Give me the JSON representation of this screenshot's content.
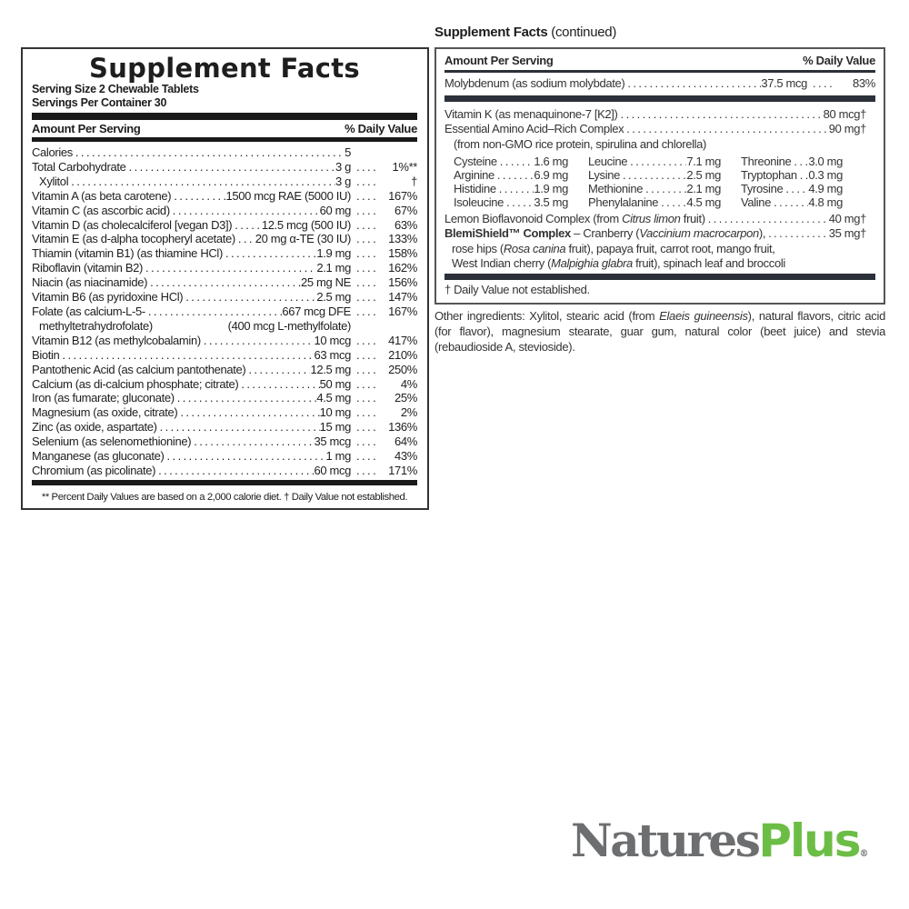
{
  "left": {
    "title": "Supplement Facts",
    "serving_size": "Serving Size 2 Chewable Tablets",
    "servings_per_container": "Servings Per Container 30",
    "header_amount": "Amount Per Serving",
    "header_dv": "% Daily Value",
    "rows": [
      {
        "label": "Calories",
        "amount": "5",
        "dv": ""
      },
      {
        "label": "Total Carbohydrate",
        "amount": "3 g",
        "dv": "1%**"
      },
      {
        "label": "Xylitol",
        "amount": "3 g",
        "dv": "†"
      },
      {
        "label": "Vitamin A (as beta carotene)",
        "amount": "1500 mcg RAE (5000 IU)",
        "dv": "167%"
      },
      {
        "label": "Vitamin C (as ascorbic acid)",
        "amount": "60 mg",
        "dv": "67%"
      },
      {
        "label": "Vitamin D (as cholecalciferol [vegan D3])",
        "amount": "12.5 mcg (500 IU)",
        "dv": "63%"
      },
      {
        "label": "Vitamin E (as d-alpha tocopheryl acetate)",
        "amount": "20 mg α-TE (30 IU)",
        "dv": "133%"
      },
      {
        "label": "Thiamin (vitamin B1) (as thiamine HCl)",
        "amount": "1.9 mg",
        "dv": "158%"
      },
      {
        "label": "Riboflavin (vitamin B2)",
        "amount": "2.1 mg",
        "dv": "162%"
      },
      {
        "label": "Niacin (as niacinamide)",
        "amount": "25 mg NE",
        "dv": "156%"
      },
      {
        "label": "Vitamin B6 (as pyridoxine HCl)",
        "amount": "2.5 mg",
        "dv": "147%"
      },
      {
        "label": "Folate (as calcium-L-5-",
        "amount": "667 mcg DFE",
        "dv": "167%",
        "label2": "methyltetrahydrofolate)",
        "amount2": "(400 mcg L-methylfolate)"
      },
      {
        "label": "Vitamin B12 (as methylcobalamin)",
        "amount": "10 mcg",
        "dv": "417%"
      },
      {
        "label": "Biotin",
        "amount": "63 mcg",
        "dv": "210%"
      },
      {
        "label": "Pantothenic Acid (as calcium pantothenate)",
        "amount": "12.5 mg",
        "dv": "250%"
      },
      {
        "label": "Calcium (as di-calcium phosphate; citrate)",
        "amount": "50 mg",
        "dv": "4%"
      },
      {
        "label": "Iron (as fumarate; gluconate)",
        "amount": "4.5 mg",
        "dv": "25%"
      },
      {
        "label": "Magnesium (as oxide, citrate)",
        "amount": "10 mg",
        "dv": "2%"
      },
      {
        "label": "Zinc (as oxide, aspartate)",
        "amount": "15 mg",
        "dv": "136%"
      },
      {
        "label": "Selenium (as selenomethionine)",
        "amount": "35 mcg",
        "dv": "64%"
      },
      {
        "label": "Manganese (as gluconate)",
        "amount": "1 mg",
        "dv": "43%"
      },
      {
        "label": "Chromium (as picolinate)",
        "amount": "60 mcg",
        "dv": "171%"
      }
    ],
    "footnote": "** Percent Daily Values are based on a 2,000 calorie diet.  † Daily Value not established."
  },
  "right": {
    "title_bold": "Supplement Facts",
    "title_rest": "(continued)",
    "header_amount": "Amount Per Serving",
    "header_dv": "% Daily Value",
    "molybdenum": {
      "label": "Molybdenum (as sodium molybdate)",
      "amount": "37.5 mcg",
      "dv": "83%"
    },
    "vitamin_k": {
      "label": "Vitamin K (as menaquinone-7 [K2])",
      "amount": "80 mcg†"
    },
    "amino_complex": {
      "label": "Essential Amino Acid–Rich Complex",
      "amount": "90 mg†",
      "source": "(from non-GMO rice protein, spirulina and chlorella)"
    },
    "amino_acids": [
      {
        "name": "Cysteine",
        "amount": "1.6 mg"
      },
      {
        "name": "Leucine",
        "amount": "7.1 mg"
      },
      {
        "name": "Threonine",
        "amount": "3.0 mg"
      },
      {
        "name": "Arginine",
        "amount": "6.9 mg"
      },
      {
        "name": "Lysine",
        "amount": "2.5 mg"
      },
      {
        "name": "Tryptophan",
        "amount": "0.3 mg"
      },
      {
        "name": "Histidine",
        "amount": "1.9 mg"
      },
      {
        "name": "Methionine",
        "amount": "2.1 mg"
      },
      {
        "name": "Tyrosine",
        "amount": "4.9 mg"
      },
      {
        "name": "Isoleucine",
        "amount": "3.5 mg"
      },
      {
        "name": "Phenylalanine",
        "amount": "4.5 mg"
      },
      {
        "name": "Valine",
        "amount": "4.8 mg"
      }
    ],
    "lemon": {
      "pre": "Lemon Bioflavonoid Complex (from ",
      "italic": "Citrus limon",
      "post": " fruit)",
      "amount": "40 mg†"
    },
    "blemishield": {
      "name": "BlemiShield™ Complex",
      "line1_pre": " – Cranberry (",
      "line1_italic": "Vaccinium macrocarpon",
      "line1_post": "),",
      "amount": "35 mg†",
      "line2_pre": "rose hips (",
      "line2_italic": "Rosa canina",
      "line2_post": " fruit), papaya fruit, carrot root, mango fruit,",
      "line3_pre": "West Indian cherry (",
      "line3_italic": "Malpighia glabra",
      "line3_post": " fruit), spinach leaf and broccoli"
    },
    "footnote": "† Daily Value not established."
  },
  "other_ingredients": {
    "pre": "Other ingredients: Xylitol, stearic acid (from ",
    "italic": "Elaeis guineensis",
    "post": "), natural flavors, citric acid (for flavor), magnesium stearate, guar gum, natural color (beet juice) and stevia (rebaudioside A, stevioside)."
  },
  "logo": {
    "part1": "Natures",
    "part2": "Plus",
    "registered": "®",
    "colors": {
      "natures": "#6d6e70",
      "plus": "#6cbd45"
    }
  }
}
